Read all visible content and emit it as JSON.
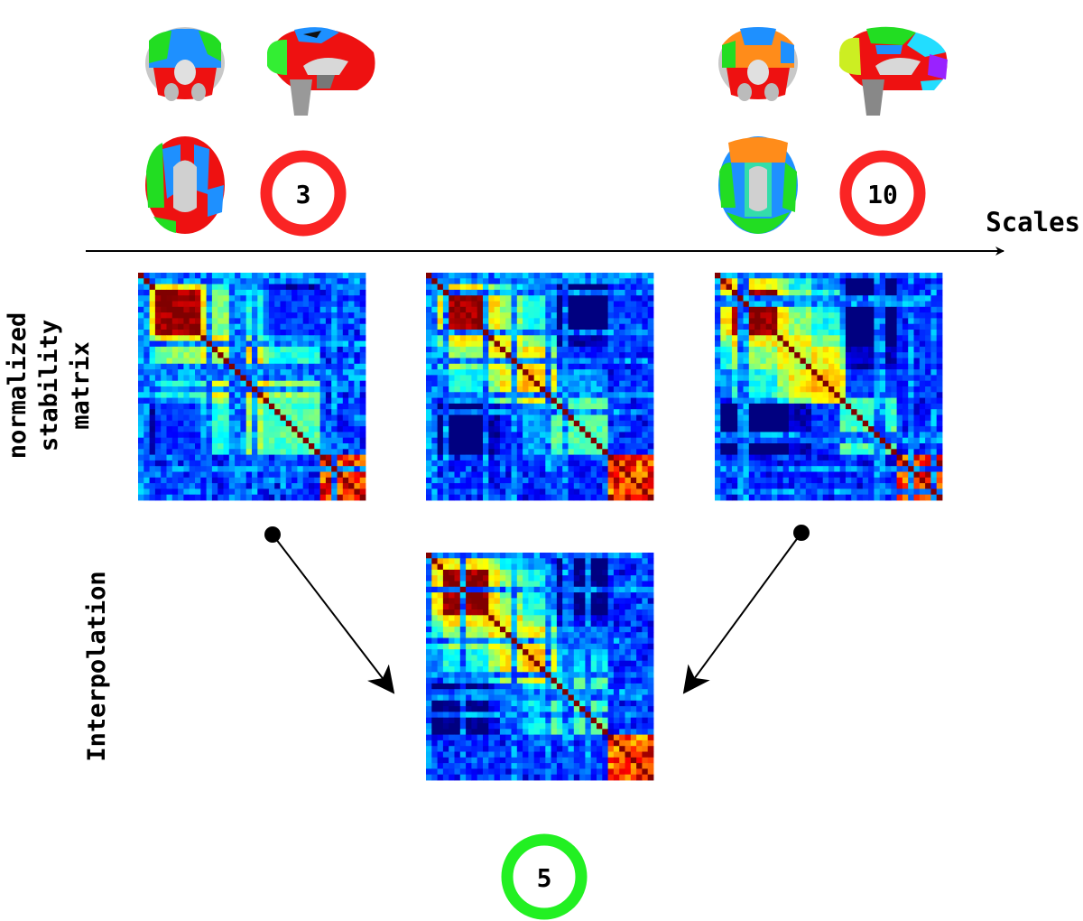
{
  "axis_label": "Scales",
  "row_labels": {
    "stability": [
      "normalized",
      "stability",
      "matrix"
    ],
    "interpolation": "Interpolation"
  },
  "scales": {
    "low": "3",
    "high": "10",
    "interpolated": "5"
  },
  "colors": {
    "ring_known": "#fa2424",
    "ring_interpolated": "#22f022",
    "arrow": "#000000",
    "colormap": "jet"
  }
}
